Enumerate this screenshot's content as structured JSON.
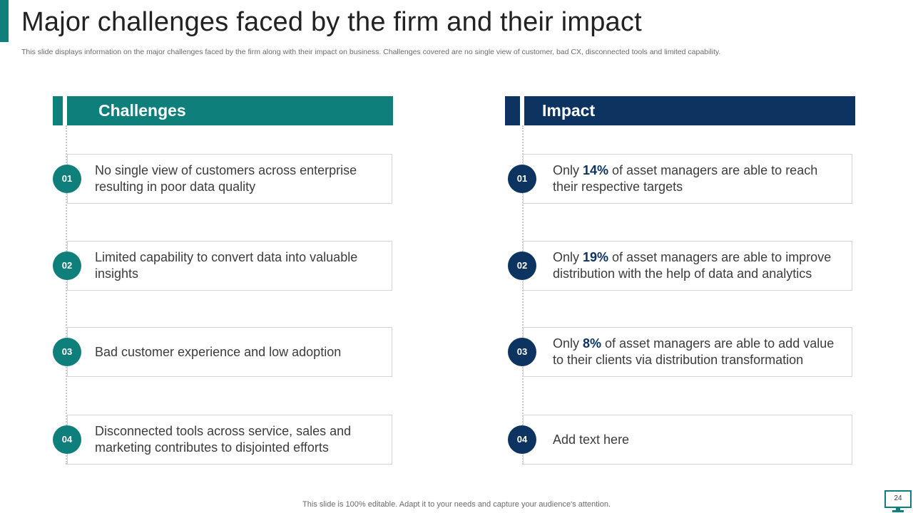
{
  "slide": {
    "title": "Major challenges faced by the firm and their impact",
    "subtitle": "This slide displays information on the major challenges faced by the firm along with their impact on business. Challenges covered are no single view of customer, bad CX,  disconnected tools and limited capability.",
    "footer": "This slide is 100% editable. Adapt it to your needs and capture your audience's attention.",
    "page_number": "24"
  },
  "colors": {
    "teal": "#0e7f7a",
    "navy": "#0d3461"
  },
  "challenges": {
    "header": "Challenges",
    "items": [
      {
        "num": "01",
        "text": "No single view of customers across enterprise resulting in poor data quality"
      },
      {
        "num": "02",
        "text": "Limited capability to convert data into valuable insights"
      },
      {
        "num": "03",
        "text": "Bad customer experience and low adoption"
      },
      {
        "num": "04",
        "text": "Disconnected tools across service, sales and marketing contributes to disjointed efforts"
      }
    ]
  },
  "impact": {
    "header": "Impact",
    "items": [
      {
        "num": "01",
        "pre": "Only ",
        "highlight": "14%",
        "post": " of asset managers are able to reach their respective targets"
      },
      {
        "num": "02",
        "pre": "Only ",
        "highlight": "19%",
        "post": " of asset managers are able to improve distribution with the help of data and analytics"
      },
      {
        "num": "03",
        "pre": "Only ",
        "highlight": "8%",
        "post": " of asset managers are able to add value to their clients via distribution transformation"
      },
      {
        "num": "04",
        "text": "Add text here"
      }
    ]
  },
  "icons": {
    "page_badge": "monitor-icon"
  }
}
